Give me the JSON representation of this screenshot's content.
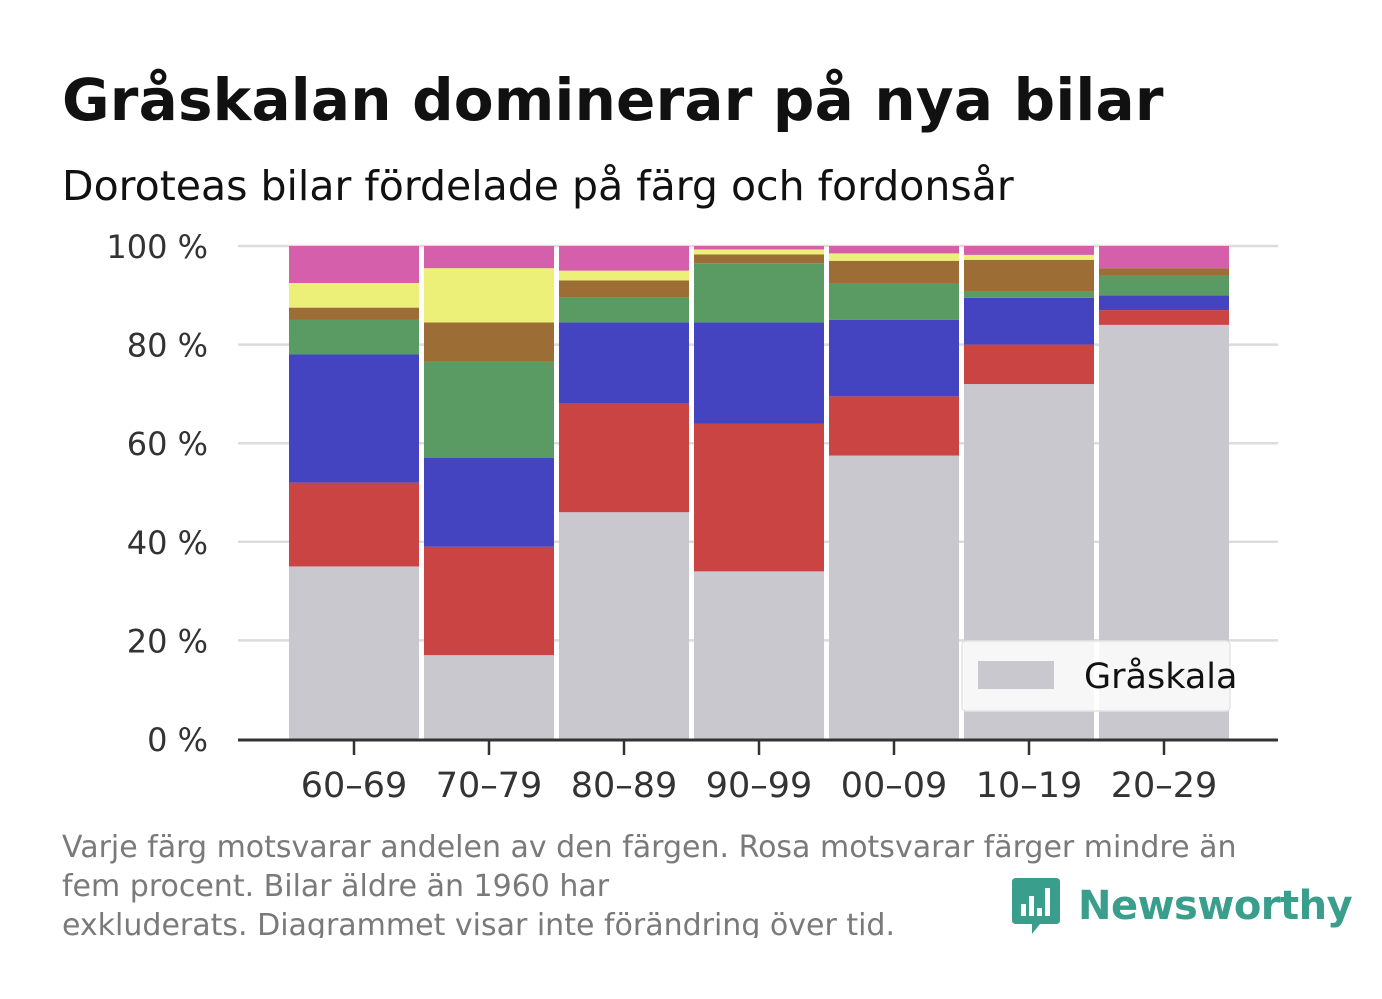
{
  "title": "Gråskalan dominerar på nya bilar",
  "subtitle": "Doroteas bilar fördelade på färg och fordonsår",
  "footnote": {
    "line1": "Varje färg motsvarar andelen av den färgen. Rosa motsvarar färger mindre än",
    "line2": "fem procent. Bilar äldre än 1960 har",
    "line3": "exkluderats. Diagrammet visar inte förändring över tid."
  },
  "brand": {
    "name": "Newsworthy",
    "icon": "newsworthy-logo-icon",
    "color": "#3a9e8c"
  },
  "chart_data": {
    "type": "bar",
    "stacked": true,
    "categories": [
      "60–69",
      "70–79",
      "80–89",
      "90–99",
      "00–09",
      "10–19",
      "20–29"
    ],
    "ylim": [
      0,
      100
    ],
    "yticks": [
      {
        "value": 0,
        "label": "0 %"
      },
      {
        "value": 20,
        "label": "20 %"
      },
      {
        "value": 40,
        "label": "40 %"
      },
      {
        "value": 60,
        "label": "60 %"
      },
      {
        "value": 80,
        "label": "80 %"
      },
      {
        "value": 100,
        "label": "100 %"
      }
    ],
    "grid": true,
    "legend": {
      "position": "bottom-right",
      "entries": [
        "Gråskala"
      ]
    },
    "series": [
      {
        "name": "Gråskala",
        "color": "#c9c8ce",
        "values": [
          35,
          17,
          46,
          34,
          57.5,
          72,
          84
        ]
      },
      {
        "color": "#cb4444",
        "values": [
          17,
          22,
          22,
          30,
          12,
          8,
          3
        ]
      },
      {
        "color": "#4444c0",
        "values": [
          26,
          18,
          16.5,
          20.5,
          15.5,
          9.5,
          3
        ]
      },
      {
        "color": "#5a9b63",
        "values": [
          7,
          19.5,
          5,
          12,
          7.5,
          1.2,
          4
        ]
      },
      {
        "color": "#9c6d34",
        "values": [
          2.5,
          8,
          3.5,
          1.8,
          4.5,
          6.5,
          1.5
        ]
      },
      {
        "color": "#ecef78",
        "values": [
          5,
          11,
          2,
          1,
          1.5,
          1,
          0
        ]
      },
      {
        "color": "#d65fab",
        "values": [
          7.5,
          4.5,
          5,
          0.7,
          1.5,
          1.8,
          4.5
        ]
      }
    ]
  }
}
